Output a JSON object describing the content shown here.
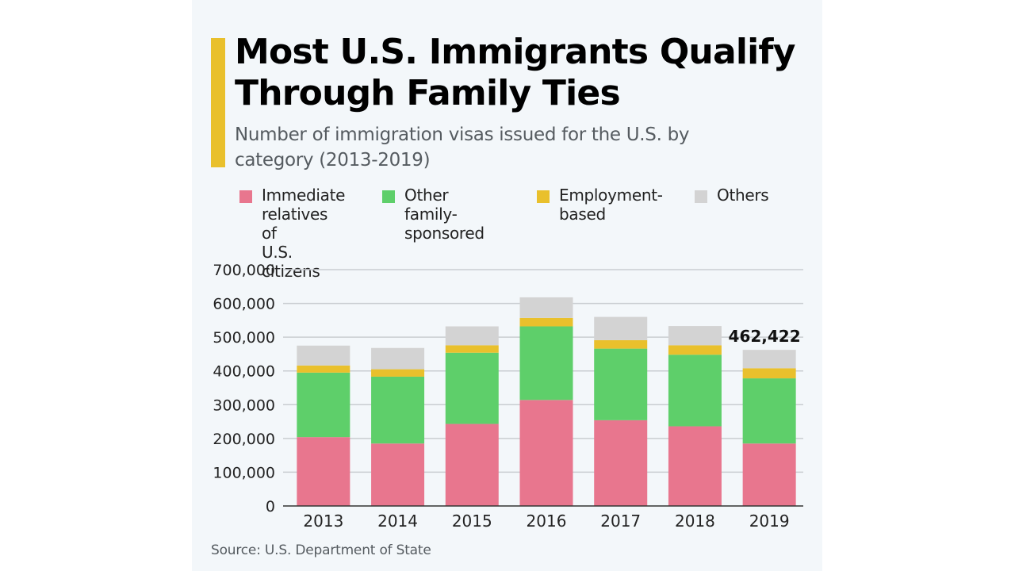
{
  "header": {
    "title": "Most U.S. Immigrants Qualify Through Family Ties",
    "subtitle": "Number of immigration visas issued for the U.S. by category (2013-2019)"
  },
  "legend": [
    {
      "label": "Immediate\nrelatives of\nU.S. citizens",
      "color": "#e8768e"
    },
    {
      "label": "Other family-\nsponsored",
      "color": "#5ecf6a"
    },
    {
      "label": "Employment-\nbased",
      "color": "#e9c02c"
    },
    {
      "label": "Others",
      "color": "#d3d3d3"
    }
  ],
  "source": "Source: U.S. Department of State",
  "chart_data": {
    "type": "bar",
    "stacked": true,
    "title": "Most U.S. Immigrants Qualify Through Family Ties",
    "subtitle": "Number of immigration visas issued for the U.S. by category (2013-2019)",
    "xlabel": "",
    "ylabel": "",
    "ylim": [
      0,
      700000
    ],
    "yticks": [
      0,
      100000,
      200000,
      300000,
      400000,
      500000,
      600000,
      700000
    ],
    "ytick_labels": [
      "0",
      "100,000",
      "200,000",
      "300,000",
      "400,000",
      "500,000",
      "600,000",
      "700,000"
    ],
    "grid": true,
    "legend_position": "top",
    "categories": [
      "2013",
      "2014",
      "2015",
      "2016",
      "2017",
      "2018",
      "2019"
    ],
    "series": [
      {
        "name": "Immediate relatives of U.S. citizens",
        "color": "#e8768e",
        "values": [
          204000,
          185000,
          243000,
          314000,
          254000,
          236000,
          185000
        ]
      },
      {
        "name": "Other family-sponsored",
        "color": "#5ecf6a",
        "values": [
          191000,
          198000,
          211000,
          218000,
          212000,
          212000,
          193000
        ]
      },
      {
        "name": "Employment-based",
        "color": "#e9c02c",
        "values": [
          21000,
          22000,
          22000,
          25000,
          25000,
          28000,
          30000
        ]
      },
      {
        "name": "Others",
        "color": "#d3d3d3",
        "values": [
          59000,
          63000,
          56000,
          61000,
          69000,
          57000,
          54422
        ]
      }
    ],
    "annotations": [
      {
        "category": "2019",
        "text": "462,422"
      }
    ]
  }
}
